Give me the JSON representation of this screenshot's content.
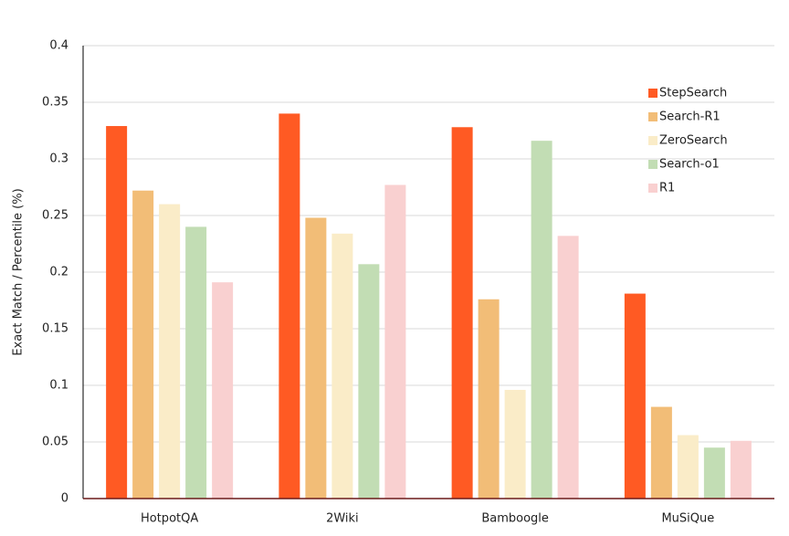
{
  "chart_data": {
    "type": "bar",
    "y_label": "Exact Match / Percentile (%)",
    "categories": [
      "HotpotQA",
      "2Wiki",
      "Bamboogle",
      "MuSiQue"
    ],
    "series": [
      {
        "name": "StepSearch",
        "color": "#ff5a23",
        "values": [
          0.329,
          0.34,
          0.328,
          0.181
        ]
      },
      {
        "name": "Search-R1",
        "color": "#f2bd77",
        "values": [
          0.272,
          0.248,
          0.176,
          0.081
        ]
      },
      {
        "name": "ZeroSearch",
        "color": "#faecc8",
        "values": [
          0.26,
          0.234,
          0.096,
          0.056
        ]
      },
      {
        "name": "Search-o1",
        "color": "#c2ddb4",
        "values": [
          0.24,
          0.207,
          0.316,
          0.045
        ]
      },
      {
        "name": "R1",
        "color": "#f9d0d0",
        "values": [
          0.191,
          0.277,
          0.232,
          0.051
        ]
      }
    ],
    "ylim": [
      0,
      0.4
    ],
    "yticks": [
      0,
      0.05,
      0.1,
      0.15,
      0.2,
      0.25,
      0.3,
      0.35,
      0.4
    ],
    "grid": true,
    "legend": "upper right"
  }
}
